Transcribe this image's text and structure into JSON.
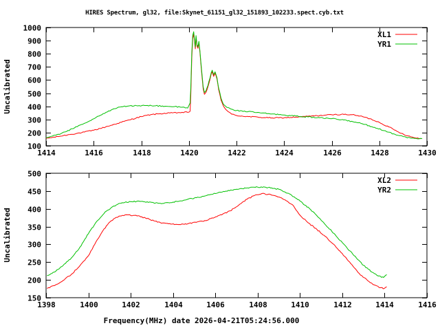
{
  "title": "HIRES Spectrum, gl32, file:Skynet_61151_gl32_151893_102233.spect.cyb.txt",
  "colors": {
    "red": "#ff0000",
    "green": "#00c000",
    "axis": "#000000",
    "background": "#ffffff"
  },
  "chart_data": [
    {
      "type": "line",
      "panel": "top",
      "ylabel": "Uncalibrated",
      "xlabel": "",
      "xlim": [
        1414,
        1430
      ],
      "ylim": [
        100,
        1000
      ],
      "xticks": [
        1414,
        1416,
        1418,
        1420,
        1422,
        1424,
        1426,
        1428,
        1430
      ],
      "yticks": [
        100,
        200,
        300,
        400,
        500,
        600,
        700,
        800,
        900,
        1000
      ],
      "grid": false,
      "legend_position": "top-right-inside",
      "series": [
        {
          "name": "XL1",
          "color": "#ff0000",
          "points": [
            [
              1414.0,
              155
            ],
            [
              1414.5,
              170
            ],
            [
              1415.0,
              186
            ],
            [
              1415.5,
              200
            ],
            [
              1416.0,
              218
            ],
            [
              1416.5,
              243
            ],
            [
              1417.0,
              270
            ],
            [
              1417.5,
              297
            ],
            [
              1418.0,
              322
            ],
            [
              1418.4,
              337
            ],
            [
              1418.8,
              344
            ],
            [
              1419.2,
              349
            ],
            [
              1419.6,
              352
            ],
            [
              1420.0,
              356
            ],
            [
              1420.05,
              362
            ],
            [
              1420.08,
              480
            ],
            [
              1420.12,
              760
            ],
            [
              1420.16,
              915
            ],
            [
              1420.2,
              950
            ],
            [
              1420.24,
              885
            ],
            [
              1420.27,
              838
            ],
            [
              1420.3,
              925
            ],
            [
              1420.34,
              858
            ],
            [
              1420.38,
              842
            ],
            [
              1420.42,
              882
            ],
            [
              1420.46,
              818
            ],
            [
              1420.5,
              728
            ],
            [
              1420.55,
              628
            ],
            [
              1420.6,
              535
            ],
            [
              1420.65,
              492
            ],
            [
              1420.72,
              508
            ],
            [
              1420.8,
              548
            ],
            [
              1420.88,
              600
            ],
            [
              1420.94,
              648
            ],
            [
              1420.98,
              662
            ],
            [
              1421.04,
              628
            ],
            [
              1421.1,
              652
            ],
            [
              1421.18,
              608
            ],
            [
              1421.25,
              528
            ],
            [
              1421.35,
              448
            ],
            [
              1421.45,
              402
            ],
            [
              1421.6,
              368
            ],
            [
              1421.8,
              340
            ],
            [
              1422.0,
              330
            ],
            [
              1422.5,
              322
            ],
            [
              1423.0,
              316
            ],
            [
              1423.5,
              312
            ],
            [
              1424.0,
              313
            ],
            [
              1424.5,
              318
            ],
            [
              1425.0,
              324
            ],
            [
              1425.5,
              330
            ],
            [
              1426.0,
              336
            ],
            [
              1426.4,
              339
            ],
            [
              1426.8,
              337
            ],
            [
              1427.2,
              326
            ],
            [
              1427.6,
              306
            ],
            [
              1428.0,
              278
            ],
            [
              1428.4,
              243
            ],
            [
              1428.8,
              205
            ],
            [
              1429.2,
              175
            ],
            [
              1429.5,
              160
            ],
            [
              1429.75,
              155
            ]
          ]
        },
        {
          "name": "YR1",
          "color": "#00c000",
          "points": [
            [
              1414.0,
              160
            ],
            [
              1414.4,
              180
            ],
            [
              1414.8,
              205
            ],
            [
              1415.2,
              237
            ],
            [
              1415.6,
              270
            ],
            [
              1416.0,
              305
            ],
            [
              1416.4,
              345
            ],
            [
              1416.8,
              378
            ],
            [
              1417.1,
              394
            ],
            [
              1417.4,
              401
            ],
            [
              1417.8,
              405
            ],
            [
              1418.2,
              406
            ],
            [
              1418.6,
              404
            ],
            [
              1419.0,
              401
            ],
            [
              1419.4,
              398
            ],
            [
              1419.7,
              393
            ],
            [
              1419.95,
              387
            ],
            [
              1420.05,
              425
            ],
            [
              1420.08,
              540
            ],
            [
              1420.12,
              800
            ],
            [
              1420.16,
              940
            ],
            [
              1420.2,
              968
            ],
            [
              1420.24,
              898
            ],
            [
              1420.27,
              852
            ],
            [
              1420.3,
              938
            ],
            [
              1420.34,
              872
            ],
            [
              1420.38,
              852
            ],
            [
              1420.42,
              895
            ],
            [
              1420.46,
              828
            ],
            [
              1420.5,
              742
            ],
            [
              1420.55,
              645
            ],
            [
              1420.6,
              550
            ],
            [
              1420.65,
              505
            ],
            [
              1420.72,
              520
            ],
            [
              1420.8,
              558
            ],
            [
              1420.88,
              612
            ],
            [
              1420.94,
              658
            ],
            [
              1420.98,
              675
            ],
            [
              1421.04,
              640
            ],
            [
              1421.1,
              663
            ],
            [
              1421.18,
              618
            ],
            [
              1421.25,
              540
            ],
            [
              1421.35,
              462
            ],
            [
              1421.45,
              415
            ],
            [
              1421.6,
              392
            ],
            [
              1421.8,
              378
            ],
            [
              1422.0,
              368
            ],
            [
              1422.5,
              360
            ],
            [
              1423.0,
              350
            ],
            [
              1423.5,
              342
            ],
            [
              1424.0,
              334
            ],
            [
              1424.5,
              326
            ],
            [
              1425.0,
              319
            ],
            [
              1425.5,
              313
            ],
            [
              1426.0,
              306
            ],
            [
              1426.5,
              296
            ],
            [
              1427.0,
              280
            ],
            [
              1427.4,
              262
            ],
            [
              1427.8,
              240
            ],
            [
              1428.2,
              215
            ],
            [
              1428.6,
              191
            ],
            [
              1429.0,
              170
            ],
            [
              1429.3,
              159
            ],
            [
              1429.6,
              153
            ],
            [
              1429.8,
              154
            ]
          ]
        }
      ]
    },
    {
      "type": "line",
      "panel": "bottom",
      "ylabel": "Uncalibrated",
      "xlabel": "Frequency(MHz) date 2026-04-21T05:24:56.000",
      "xlim": [
        1398,
        1416
      ],
      "ylim": [
        150,
        500
      ],
      "xticks": [
        1398,
        1400,
        1402,
        1404,
        1406,
        1408,
        1410,
        1412,
        1414,
        1416
      ],
      "yticks": [
        150,
        200,
        250,
        300,
        350,
        400,
        450,
        500
      ],
      "grid": false,
      "legend_position": "top-right-inside",
      "series": [
        {
          "name": "XL2",
          "color": "#ff0000",
          "points": [
            [
              1398.05,
              176
            ],
            [
              1398.4,
              184
            ],
            [
              1398.8,
              198
            ],
            [
              1399.2,
              216
            ],
            [
              1399.6,
              240
            ],
            [
              1400.0,
              268
            ],
            [
              1400.3,
              300
            ],
            [
              1400.6,
              330
            ],
            [
              1400.9,
              355
            ],
            [
              1401.2,
              372
            ],
            [
              1401.5,
              380
            ],
            [
              1401.9,
              383
            ],
            [
              1402.3,
              380
            ],
            [
              1402.7,
              374
            ],
            [
              1403.1,
              366
            ],
            [
              1403.5,
              360
            ],
            [
              1403.9,
              357
            ],
            [
              1404.3,
              356
            ],
            [
              1404.7,
              358
            ],
            [
              1405.1,
              362
            ],
            [
              1405.5,
              367
            ],
            [
              1405.9,
              374
            ],
            [
              1406.3,
              383
            ],
            [
              1406.7,
              394
            ],
            [
              1407.1,
              410
            ],
            [
              1407.5,
              427
            ],
            [
              1407.9,
              439
            ],
            [
              1408.2,
              443
            ],
            [
              1408.5,
              441
            ],
            [
              1408.9,
              435
            ],
            [
              1409.3,
              425
            ],
            [
              1409.7,
              408
            ],
            [
              1410.0,
              382
            ],
            [
              1410.4,
              360
            ],
            [
              1410.8,
              342
            ],
            [
              1411.2,
              322
            ],
            [
              1411.6,
              300
            ],
            [
              1412.0,
              274
            ],
            [
              1412.4,
              246
            ],
            [
              1412.8,
              218
            ],
            [
              1413.2,
              198
            ],
            [
              1413.5,
              186
            ],
            [
              1413.8,
              178
            ],
            [
              1413.98,
              176
            ],
            [
              1414.1,
              181
            ]
          ]
        },
        {
          "name": "YR2",
          "color": "#00c000",
          "points": [
            [
              1398.05,
              212
            ],
            [
              1398.4,
              222
            ],
            [
              1398.8,
              240
            ],
            [
              1399.2,
              262
            ],
            [
              1399.6,
              292
            ],
            [
              1400.0,
              330
            ],
            [
              1400.4,
              365
            ],
            [
              1400.8,
              392
            ],
            [
              1401.2,
              408
            ],
            [
              1401.6,
              417
            ],
            [
              1402.0,
              420
            ],
            [
              1402.5,
              421
            ],
            [
              1403.0,
              418
            ],
            [
              1403.5,
              415
            ],
            [
              1404.0,
              419
            ],
            [
              1404.5,
              424
            ],
            [
              1405.0,
              430
            ],
            [
              1405.5,
              436
            ],
            [
              1406.0,
              443
            ],
            [
              1406.5,
              450
            ],
            [
              1407.0,
              455
            ],
            [
              1407.5,
              459
            ],
            [
              1408.0,
              461
            ],
            [
              1408.5,
              460
            ],
            [
              1409.0,
              455
            ],
            [
              1409.5,
              442
            ],
            [
              1410.0,
              422
            ],
            [
              1410.5,
              398
            ],
            [
              1411.0,
              368
            ],
            [
              1411.5,
              337
            ],
            [
              1412.0,
              305
            ],
            [
              1412.5,
              272
            ],
            [
              1413.0,
              241
            ],
            [
              1413.4,
              222
            ],
            [
              1413.7,
              211
            ],
            [
              1413.95,
              207
            ],
            [
              1414.1,
              215
            ]
          ]
        }
      ]
    }
  ]
}
